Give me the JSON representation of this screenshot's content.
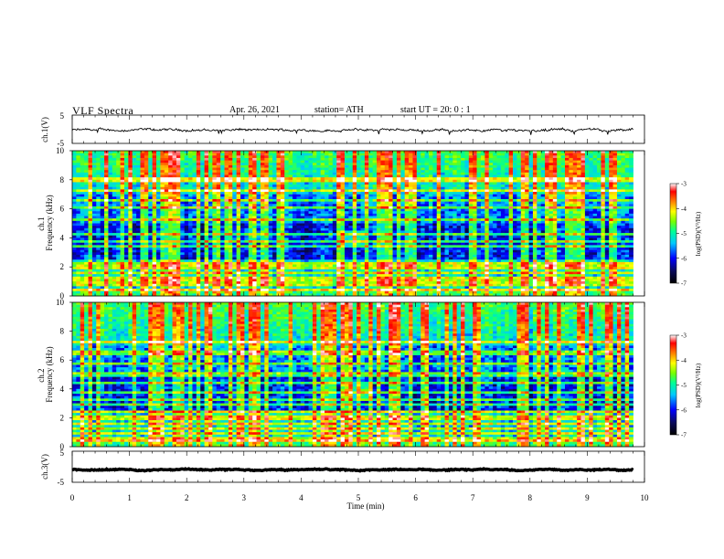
{
  "header": {
    "title": "VLF  Spectra",
    "date": "Apr. 26, 2021",
    "station": "station= ATH",
    "start_time": "start  UT  =    20: 0   : 1"
  },
  "chart_data": [
    {
      "type": "line",
      "panel": "ch1-waveform",
      "ylabel": "ch.1(V)",
      "ylim": [
        -5,
        5
      ],
      "yticks": [
        "5",
        "-5"
      ],
      "xlim": [
        0,
        10
      ],
      "x_end": 9.8,
      "level": -0.3,
      "spread": 0.6
    },
    {
      "type": "heatmap",
      "panel": "ch1-spectrogram",
      "ylabel": "ch.1\nFrequency  (kHz)",
      "ylim": [
        0,
        10
      ],
      "yticks": [
        "0",
        "2",
        "4",
        "6",
        "8",
        "10"
      ],
      "xlim": [
        0,
        10
      ],
      "x_end": 9.8,
      "colorbar": {
        "label": "log(PSD)(V²/Hz)",
        "range": [
          -7,
          -3
        ],
        "ticks": [
          "-3",
          "-4",
          "-5",
          "-6",
          "-7"
        ]
      },
      "bands_khz": [
        0.4,
        0.7,
        1.0,
        1.3,
        1.6,
        2.0,
        2.3,
        3.4,
        3.7,
        4.3,
        5.3,
        6.1,
        6.6,
        7.2,
        8.0
      ],
      "event": {
        "t_min": 4.9,
        "f_khz": 4.0
      }
    },
    {
      "type": "heatmap",
      "panel": "ch2-spectrogram",
      "ylabel": "ch.2\nFrequency  (kHz)",
      "ylim": [
        0,
        10
      ],
      "yticks": [
        "0",
        "2",
        "4",
        "6",
        "8",
        "10"
      ],
      "xlim": [
        0,
        10
      ],
      "x_end": 9.8,
      "colorbar": {
        "label": "log(PSD)(V²/Hz)",
        "range": [
          -7,
          -3
        ],
        "ticks": [
          "-3",
          "-4",
          "-5",
          "-6",
          "-7"
        ]
      },
      "bands_khz": [
        0.5,
        0.9,
        1.3,
        1.6,
        2.0,
        2.4,
        2.9,
        3.3,
        3.8,
        4.4,
        5.0,
        5.7,
        6.5,
        7.3
      ],
      "event": {
        "t_min": 5.0,
        "f_khz": 3.8
      }
    },
    {
      "type": "line",
      "panel": "ch3-waveform",
      "ylabel": "ch.3(V)",
      "ylim": [
        -5,
        5
      ],
      "yticks": [
        "5",
        "-5"
      ],
      "xlim": [
        0,
        10
      ],
      "x_end": 9.8,
      "level": -1.0,
      "spread": 0.25
    }
  ],
  "x_axis": {
    "label": "Time  (min)",
    "ticks": [
      "0",
      "1",
      "2",
      "3",
      "4",
      "5",
      "6",
      "7",
      "8",
      "9",
      "10"
    ]
  },
  "colors": {
    "axis": "#000000",
    "trace": "#000000",
    "colormap": [
      "#000000",
      "#0a0a5a",
      "#0000ff",
      "#00c8ff",
      "#00ff96",
      "#78ff00",
      "#ffff00",
      "#ff8000",
      "#ff0000",
      "#ffffff"
    ]
  }
}
